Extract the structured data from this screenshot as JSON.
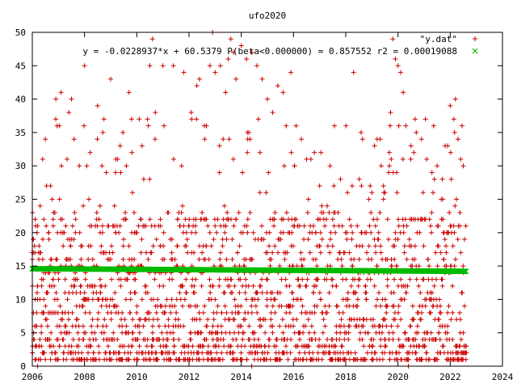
{
  "chart_data": {
    "type": "scatter",
    "title": "ufo2020",
    "xlabel": "",
    "ylabel": "",
    "xlim": [
      2006,
      2024
    ],
    "ylim": [
      0,
      50
    ],
    "x_ticks": [
      "2006",
      "2008",
      "2010",
      "2012",
      "2014",
      "2016",
      "2018",
      "2020",
      "2022",
      "2024"
    ],
    "y_ticks": [
      "0",
      "5",
      "10",
      "15",
      "20",
      "25",
      "30",
      "35",
      "40",
      "45",
      "50"
    ],
    "grid": false,
    "legend_position": "top-right",
    "series": [
      {
        "name": "\"y.dat\"",
        "marker": "plus",
        "color": "#cc0000",
        "x_range": [
          2006.0,
          2022.6
        ],
        "x_step": 0.05,
        "note_values": "daily values 0-50 scattered, dense between 1 and 20",
        "points": [
          [
            2006.0,
            2
          ],
          [
            2006.05,
            4
          ],
          [
            2006.1,
            1
          ],
          [
            2006.15,
            3
          ],
          [
            2006.2,
            0
          ],
          [
            2006.3,
            24
          ],
          [
            2006.4,
            19
          ],
          [
            2006.5,
            34
          ],
          [
            2006.7,
            27
          ],
          [
            2006.9,
            40
          ],
          [
            2006.95,
            36
          ],
          [
            2007.1,
            41
          ],
          [
            2007.4,
            38
          ],
          [
            2007.5,
            40
          ],
          [
            2007.6,
            34
          ],
          [
            2007.8,
            30
          ],
          [
            2008.0,
            45
          ],
          [
            2008.5,
            39
          ],
          [
            2008.7,
            35
          ],
          [
            2009.0,
            43
          ],
          [
            2009.2,
            31
          ],
          [
            2009.6,
            30
          ],
          [
            2009.7,
            41
          ],
          [
            2009.8,
            37
          ],
          [
            2010.2,
            33
          ],
          [
            2010.5,
            45
          ],
          [
            2010.6,
            49
          ],
          [
            2010.7,
            34
          ],
          [
            2011.0,
            45
          ],
          [
            2011.4,
            45
          ],
          [
            2011.8,
            44
          ],
          [
            2012.1,
            37
          ],
          [
            2012.3,
            42
          ],
          [
            2012.4,
            43
          ],
          [
            2012.6,
            34
          ],
          [
            2012.8,
            45
          ],
          [
            2012.9,
            50
          ],
          [
            2013.0,
            44
          ],
          [
            2013.2,
            45
          ],
          [
            2013.4,
            41
          ],
          [
            2013.5,
            46
          ],
          [
            2013.6,
            49
          ],
          [
            2013.7,
            47
          ],
          [
            2013.8,
            43
          ],
          [
            2014.0,
            48
          ],
          [
            2014.2,
            46
          ],
          [
            2014.4,
            47
          ],
          [
            2014.6,
            45
          ],
          [
            2014.8,
            43
          ],
          [
            2015.0,
            40
          ],
          [
            2015.2,
            38
          ],
          [
            2015.4,
            42
          ],
          [
            2015.6,
            41
          ],
          [
            2015.9,
            44
          ],
          [
            2016.1,
            36
          ],
          [
            2016.3,
            34
          ],
          [
            2016.5,
            31
          ],
          [
            2016.8,
            32
          ],
          [
            2017.0,
            27
          ],
          [
            2017.4,
            30
          ],
          [
            2017.8,
            28
          ],
          [
            2018.3,
            44
          ],
          [
            2018.6,
            27
          ],
          [
            2019.0,
            26
          ],
          [
            2019.5,
            26
          ],
          [
            2019.7,
            36
          ],
          [
            2019.8,
            49
          ],
          [
            2019.9,
            46
          ],
          [
            2020.0,
            45
          ],
          [
            2020.1,
            44
          ],
          [
            2020.2,
            41
          ],
          [
            2020.3,
            36
          ],
          [
            2020.5,
            33
          ],
          [
            2020.7,
            35
          ],
          [
            2020.9,
            34
          ],
          [
            2021.1,
            31
          ],
          [
            2021.3,
            29
          ],
          [
            2021.5,
            30
          ],
          [
            2021.7,
            28
          ],
          [
            2021.9,
            33
          ],
          [
            2022.0,
            39
          ],
          [
            2022.2,
            40
          ],
          [
            2022.3,
            34
          ],
          [
            2022.4,
            31
          ],
          [
            2022.5,
            30
          ],
          [
            2008.0,
            1
          ],
          [
            2009.3,
            2
          ],
          [
            2010.0,
            1
          ],
          [
            2011.0,
            2
          ],
          [
            2014.4,
            0
          ],
          [
            2016.6,
            2
          ],
          [
            2017.5,
            4
          ],
          [
            2018.0,
            1
          ],
          [
            2019.0,
            1
          ],
          [
            2020.4,
            0
          ],
          [
            2021.5,
            1
          ],
          [
            2022.3,
            2
          ],
          [
            2022.6,
            1
          ]
        ]
      },
      {
        "name": "y = -0.0228937*x + 60.5379 P(beta<0.000000) = 0.857552 r2 = 0.00019088",
        "marker": "x",
        "color": "#00bb00",
        "x_range": [
          2006.0,
          2022.6
        ],
        "values": [
          14.6,
          14.2
        ]
      }
    ]
  }
}
